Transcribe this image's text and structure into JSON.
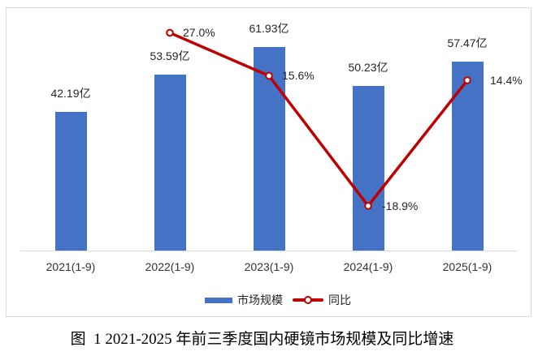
{
  "chart_data": {
    "type": "bar",
    "subtype": "bar-line-combo",
    "categories": [
      "2021(1-9)",
      "2022(1-9)",
      "2023(1-9)",
      "2024(1-9)",
      "2025(1-9)"
    ],
    "series": [
      {
        "name": "市场规模",
        "type": "bar",
        "unit": "亿",
        "values": [
          42.19,
          53.59,
          61.93,
          50.23,
          57.47
        ],
        "labels": [
          "42.19亿",
          "53.59亿",
          "61.93亿",
          "50.23亿",
          "57.47亿"
        ],
        "color": "#4472C4"
      },
      {
        "name": "同比",
        "type": "line",
        "unit": "%",
        "categories": [
          "2022(1-9)",
          "2023(1-9)",
          "2024(1-9)",
          "2025(1-9)"
        ],
        "values": [
          27.0,
          15.6,
          -18.9,
          14.4
        ],
        "labels": [
          "27.0%",
          "15.6%",
          "-18.9%",
          "14.4%"
        ],
        "color": "#C00000",
        "marker": "circle-white-fill-red-stroke"
      }
    ],
    "legend": {
      "position": "bottom",
      "items": [
        "市场规模",
        "同比"
      ]
    },
    "axes": {
      "x_ticks": [
        "2021(1-9)",
        "2022(1-9)",
        "2023(1-9)",
        "2024(1-9)",
        "2025(1-9)"
      ],
      "y_left_visible": false,
      "y_right_visible": false,
      "bar_axis_implied_range": [
        0,
        65
      ],
      "line_axis_implied_range": [
        -30,
        32
      ],
      "gridlines": false
    },
    "title": ""
  },
  "caption": "图  1 2021-2025 年前三季度国内硬镜市场规模及同比增速",
  "colors": {
    "bar": "#4472C4",
    "line": "#C00000",
    "marker_fill": "#FFFFFF",
    "frame_border": "#D9D9D9",
    "axis_line": "#D9D9D9",
    "chart_text": "#262626",
    "caption_text": "#000000"
  }
}
